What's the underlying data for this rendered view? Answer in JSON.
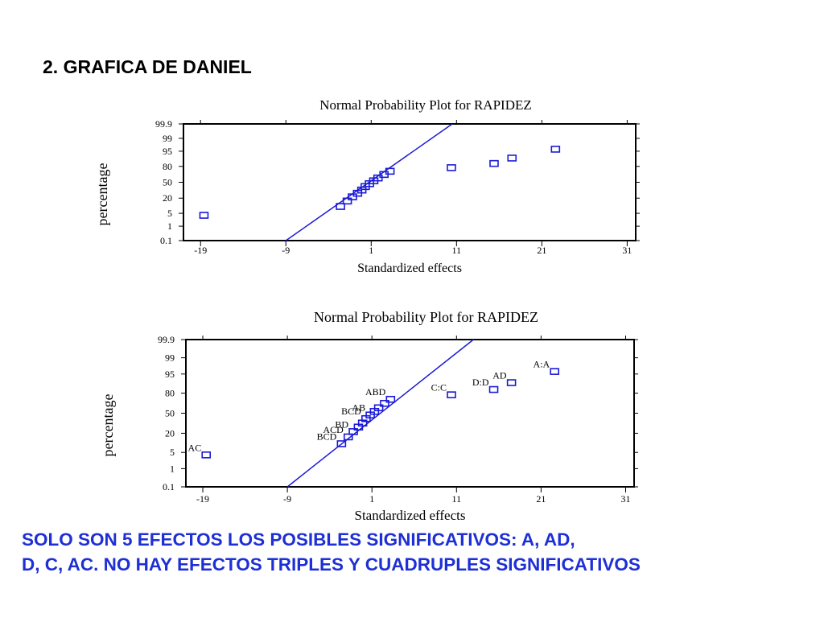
{
  "heading": "2. GRAFICA DE DANIEL",
  "conclusion": [
    "SOLO SON 5 EFECTOS LOS POSIBLES SIGNIFICATIVOS: A, AD,",
    "D, C, AC. NO HAY EFECTOS TRIPLES Y CUADRUPLES SIGNIFICATIVOS"
  ],
  "colors": {
    "marker": "#1a1ad6",
    "line": "#1a1ad6",
    "conclusion_text": "#1e2fd6"
  },
  "chart_data": [
    {
      "type": "scatter",
      "title": "Normal Probability Plot for RAPIDEZ",
      "xlabel": "Standardized effects",
      "ylabel": "percentage",
      "xticks": [
        -19,
        -9,
        1,
        11,
        21,
        31
      ],
      "xlim": [
        -21,
        32
      ],
      "yticks": [
        "0.1",
        "1",
        "5",
        "20",
        "50",
        "80",
        "95",
        "99",
        "99.9"
      ],
      "yscale": "normal-probability",
      "reference_line": {
        "from": [
          -9,
          0.1
        ],
        "to": [
          10.5,
          99.9
        ]
      },
      "points": [
        {
          "x": -18.6,
          "y": 4
        },
        {
          "x": -2.6,
          "y": 10
        },
        {
          "x": -1.8,
          "y": 16
        },
        {
          "x": -1.2,
          "y": 22
        },
        {
          "x": -0.6,
          "y": 28
        },
        {
          "x": -0.1,
          "y": 34
        },
        {
          "x": 0.3,
          "y": 41
        },
        {
          "x": 0.8,
          "y": 47
        },
        {
          "x": 1.3,
          "y": 53
        },
        {
          "x": 1.8,
          "y": 59
        },
        {
          "x": 2.5,
          "y": 66
        },
        {
          "x": 3.2,
          "y": 72
        },
        {
          "x": 10.4,
          "y": 78
        },
        {
          "x": 15.4,
          "y": 84
        },
        {
          "x": 17.5,
          "y": 90
        },
        {
          "x": 22.6,
          "y": 96
        }
      ]
    },
    {
      "type": "scatter",
      "title": "Normal Probability Plot for RAPIDEZ",
      "xlabel": "Standardized effects",
      "ylabel": "percentage",
      "xticks": [
        -19,
        -9,
        1,
        11,
        21,
        31
      ],
      "xlim": [
        -21,
        32
      ],
      "yticks": [
        "0.1",
        "1",
        "5",
        "20",
        "50",
        "80",
        "95",
        "99",
        "99.9"
      ],
      "yscale": "normal-probability",
      "reference_line": {
        "from": [
          -9,
          0.1
        ],
        "to": [
          13,
          99.9
        ]
      },
      "points": [
        {
          "x": -18.6,
          "y": 4,
          "label": "AC"
        },
        {
          "x": -2.6,
          "y": 10,
          "label": "BCD"
        },
        {
          "x": -1.8,
          "y": 16,
          "label": "ACD"
        },
        {
          "x": -1.2,
          "y": 22,
          "label": "BD"
        },
        {
          "x": -0.6,
          "y": 28,
          "label": ""
        },
        {
          "x": -0.1,
          "y": 34,
          "label": ""
        },
        {
          "x": 0.3,
          "y": 41,
          "label": "BCD"
        },
        {
          "x": 0.8,
          "y": 47,
          "label": "AB"
        },
        {
          "x": 1.3,
          "y": 53,
          "label": ""
        },
        {
          "x": 1.8,
          "y": 59,
          "label": ""
        },
        {
          "x": 2.5,
          "y": 66,
          "label": ""
        },
        {
          "x": 3.2,
          "y": 72,
          "label": "ABD"
        },
        {
          "x": 10.4,
          "y": 78,
          "label": "C:C"
        },
        {
          "x": 15.4,
          "y": 84,
          "label": "D:D"
        },
        {
          "x": 17.5,
          "y": 90,
          "label": "AD"
        },
        {
          "x": 22.6,
          "y": 96,
          "label": "A:A"
        }
      ]
    }
  ]
}
